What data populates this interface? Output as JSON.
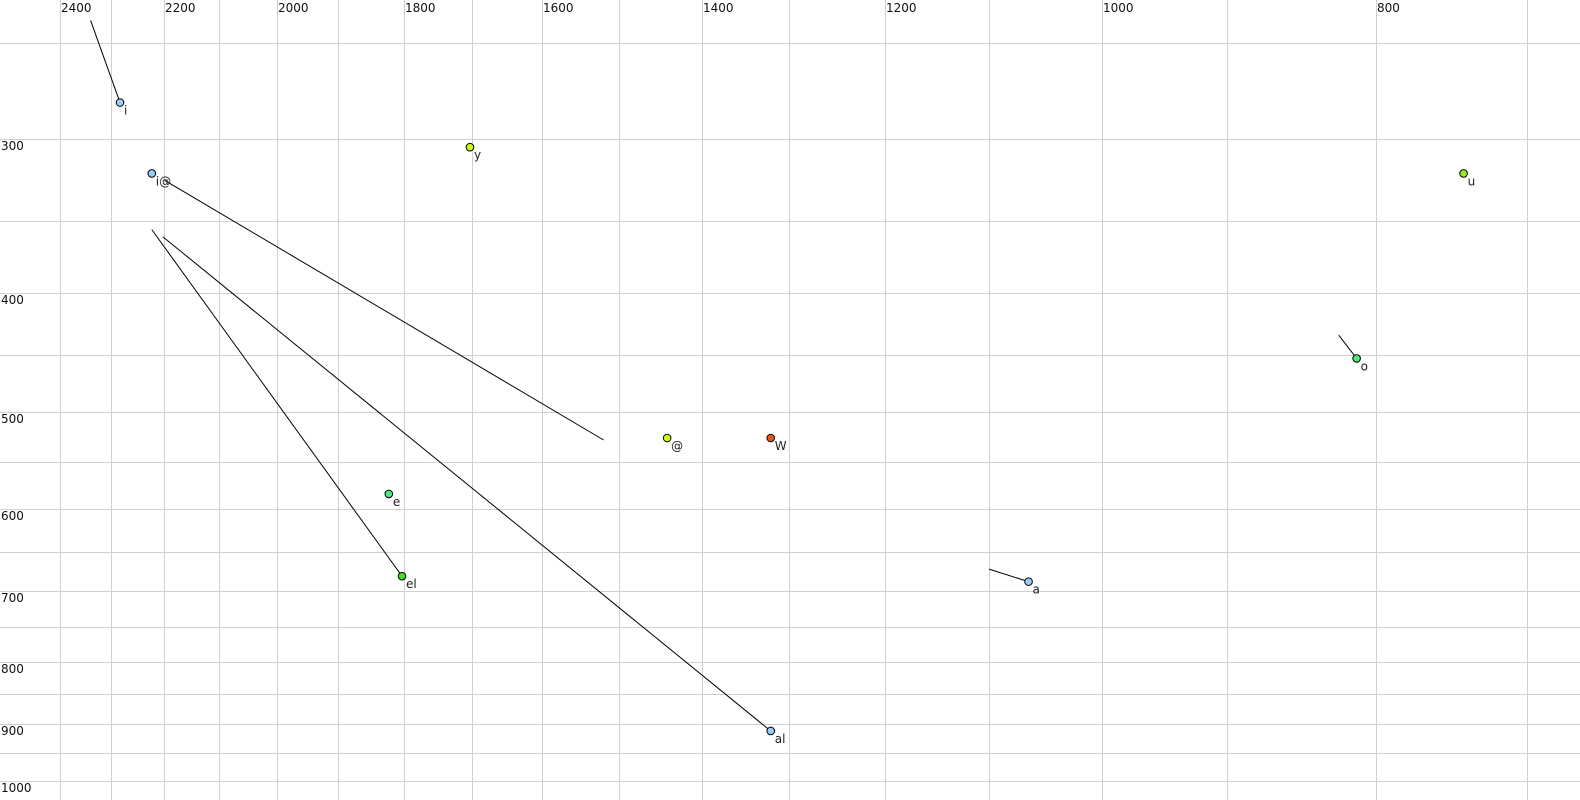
{
  "chart_data": {
    "type": "scatter",
    "title": "",
    "xlabel": "",
    "ylabel": "",
    "x_axis": {
      "reversed": true,
      "scale": "nonlinear (auditory)",
      "ticks": [
        2400,
        2200,
        2000,
        1800,
        1600,
        1400,
        1200,
        1000,
        800
      ],
      "gridlines": [
        2400,
        2300,
        2200,
        2100,
        2000,
        1900,
        1800,
        1700,
        1600,
        1500,
        1400,
        1300,
        1200,
        1100,
        1000,
        900,
        800,
        700
      ],
      "position": "top"
    },
    "y_axis": {
      "reversed": false,
      "scale": "nonlinear (auditory)",
      "ticks": [
        300,
        400,
        500,
        600,
        700,
        800,
        900,
        1000
      ],
      "gridlines": [
        250,
        300,
        350,
        400,
        450,
        500,
        550,
        600,
        650,
        700,
        750,
        800,
        850,
        900,
        950,
        1000
      ],
      "position": "left"
    },
    "grid": true,
    "points": [
      {
        "label": "i",
        "f2": 2283,
        "f1": 281,
        "color": "#99ccff",
        "trajectory_start": [
          2340,
          240
        ]
      },
      {
        "label": "i@",
        "f2": 2223,
        "f1": 321,
        "color": "#99ccff",
        "trajectory_end": [
          1520,
          528
        ]
      },
      {
        "label": "y",
        "f2": 1703,
        "f1": 305,
        "color": "#ccff00"
      },
      {
        "label": "u",
        "f2": 742,
        "f1": 321,
        "color": "#99ee22"
      },
      {
        "label": "o",
        "f2": 813,
        "f1": 453,
        "color": "#44ee77",
        "trajectory_start": [
          825,
          434
        ]
      },
      {
        "label": "@",
        "f2": 1442,
        "f1": 526,
        "color": "#ccff00"
      },
      {
        "label": "W",
        "f2": 1321,
        "f1": 526,
        "color": "#ee5500"
      },
      {
        "label": "e",
        "f2": 1823,
        "f1": 584,
        "color": "#44ee88"
      },
      {
        "label": "el",
        "f2": 1803,
        "f1": 681,
        "color": "#44dd22",
        "trajectory_start": [
          2223,
          356
        ]
      },
      {
        "label": "a",
        "f2": 1065,
        "f1": 688,
        "color": "#99ccff",
        "trajectory_start": [
          1100,
          672
        ]
      },
      {
        "label": "al",
        "f2": 1321,
        "f1": 912,
        "color": "#99ccff",
        "trajectory_start": [
          2202,
          361
        ]
      }
    ]
  }
}
